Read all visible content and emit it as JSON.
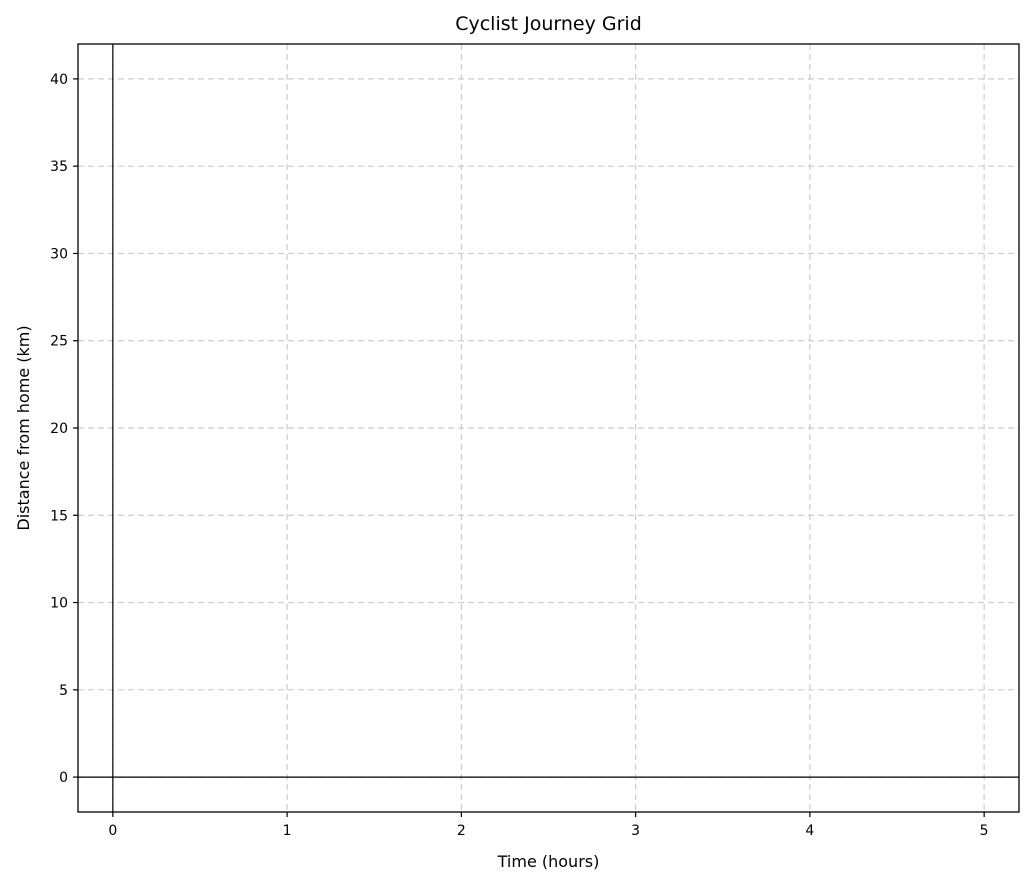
{
  "chart_data": {
    "type": "line",
    "title": "Cyclist Journey Grid",
    "xlabel": "Time (hours)",
    "ylabel": "Distance from home (km)",
    "xlim": [
      -0.2,
      5.2
    ],
    "ylim": [
      -2,
      42
    ],
    "x_ticks": [
      0,
      1,
      2,
      3,
      4,
      5
    ],
    "y_ticks": [
      0,
      5,
      10,
      15,
      20,
      25,
      30,
      35,
      40
    ],
    "grid": true,
    "grid_style": "dashed",
    "reference_lines": {
      "x": 0,
      "y": 0
    },
    "series": []
  }
}
